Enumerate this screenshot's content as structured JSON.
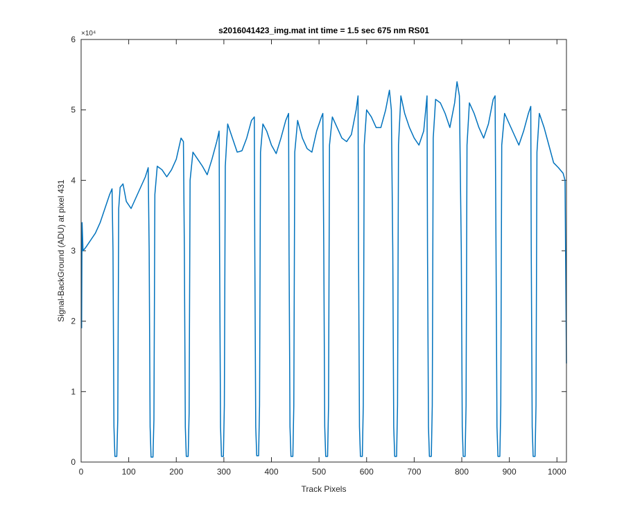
{
  "chart_data": {
    "type": "line",
    "title": "s2016041423_img.mat int time = 1.5 sec  675 nm RS01",
    "x_label": "Track Pixels",
    "y_label": "Signal-BackGround (ADU) at pixel 431",
    "y_exponent_label": "×10⁴",
    "xlim": [
      0,
      1020
    ],
    "xticks": [
      0,
      100,
      200,
      300,
      400,
      500,
      600,
      700,
      800,
      900,
      1000
    ],
    "ylim": [
      0,
      60000
    ],
    "yticks": [
      {
        "value": 0,
        "label": "0"
      },
      {
        "value": 10000,
        "label": "1"
      },
      {
        "value": 20000,
        "label": "2"
      },
      {
        "value": 30000,
        "label": "3"
      },
      {
        "value": 40000,
        "label": "4"
      },
      {
        "value": 50000,
        "label": "5"
      },
      {
        "value": 60000,
        "label": "6"
      }
    ],
    "series": [
      {
        "color": "#0072bd",
        "x": [
          1,
          2,
          4,
          10,
          20,
          30,
          40,
          50,
          60,
          65,
          67,
          69,
          71,
          75,
          77,
          79,
          82,
          88,
          95,
          105,
          115,
          125,
          135,
          141,
          143,
          145,
          147,
          151,
          153,
          155,
          160,
          170,
          180,
          190,
          200,
          210,
          215,
          217,
          219,
          221,
          225,
          227,
          229,
          235,
          245,
          255,
          265,
          275,
          285,
          290,
          291,
          293,
          295,
          299,
          301,
          303,
          308,
          318,
          328,
          338,
          348,
          358,
          364,
          365,
          367,
          369,
          373,
          375,
          377,
          382,
          390,
          400,
          410,
          420,
          430,
          436,
          437,
          439,
          441,
          445,
          447,
          449,
          455,
          465,
          475,
          485,
          495,
          505,
          508,
          510,
          512,
          514,
          518,
          520,
          522,
          528,
          538,
          548,
          558,
          568,
          578,
          582,
          583,
          585,
          587,
          591,
          593,
          595,
          600,
          610,
          620,
          630,
          640,
          648,
          652,
          655,
          657,
          659,
          663,
          665,
          667,
          672,
          680,
          690,
          700,
          710,
          720,
          727,
          728,
          730,
          732,
          736,
          738,
          740,
          745,
          755,
          765,
          775,
          785,
          790,
          795,
          799,
          801,
          803,
          807,
          809,
          811,
          816,
          826,
          836,
          846,
          856,
          866,
          870,
          872,
          874,
          876,
          880,
          882,
          884,
          890,
          900,
          910,
          920,
          930,
          940,
          945,
          946,
          948,
          950,
          954,
          956,
          958,
          963,
          973,
          983,
          993,
          1003,
          1013,
          1017,
          1020
        ],
        "values": [
          19000,
          34000,
          30000,
          30500,
          31500,
          32500,
          34000,
          36000,
          38000,
          38800,
          30000,
          5000,
          800,
          800,
          6000,
          36000,
          39000,
          39500,
          37000,
          36000,
          37500,
          39000,
          40500,
          41800,
          30000,
          5000,
          700,
          700,
          6000,
          38000,
          42000,
          41500,
          40500,
          41500,
          43000,
          46000,
          45500,
          30000,
          5000,
          800,
          800,
          7000,
          40000,
          44000,
          43000,
          42000,
          40800,
          43000,
          45500,
          47000,
          30000,
          5000,
          800,
          800,
          8000,
          42000,
          48000,
          46000,
          44000,
          44200,
          46000,
          48500,
          49000,
          30000,
          5000,
          900,
          900,
          8000,
          44000,
          48000,
          47000,
          45000,
          43800,
          46000,
          48500,
          49500,
          30000,
          5000,
          800,
          800,
          8000,
          44000,
          48500,
          46000,
          44500,
          44000,
          47000,
          49000,
          49500,
          30000,
          5000,
          800,
          800,
          8000,
          45000,
          49000,
          47500,
          46000,
          45500,
          46500,
          50000,
          52000,
          30000,
          5000,
          800,
          800,
          8000,
          45000,
          50000,
          49000,
          47500,
          47500,
          50000,
          52800,
          50000,
          30000,
          5000,
          800,
          800,
          8000,
          45000,
          52000,
          49500,
          47500,
          46000,
          45000,
          47000,
          52000,
          30000,
          5000,
          800,
          800,
          8000,
          46000,
          51500,
          51000,
          49500,
          47500,
          51000,
          54000,
          52000,
          30000,
          5000,
          800,
          800,
          8000,
          45000,
          51000,
          49500,
          47500,
          46000,
          48000,
          51500,
          52000,
          30000,
          5000,
          800,
          800,
          8000,
          45000,
          49500,
          48000,
          46500,
          45000,
          47000,
          49500,
          50500,
          30000,
          5000,
          800,
          800,
          8000,
          44000,
          49500,
          47500,
          45000,
          42500,
          41800,
          41000,
          40000,
          14000
        ]
      }
    ]
  }
}
